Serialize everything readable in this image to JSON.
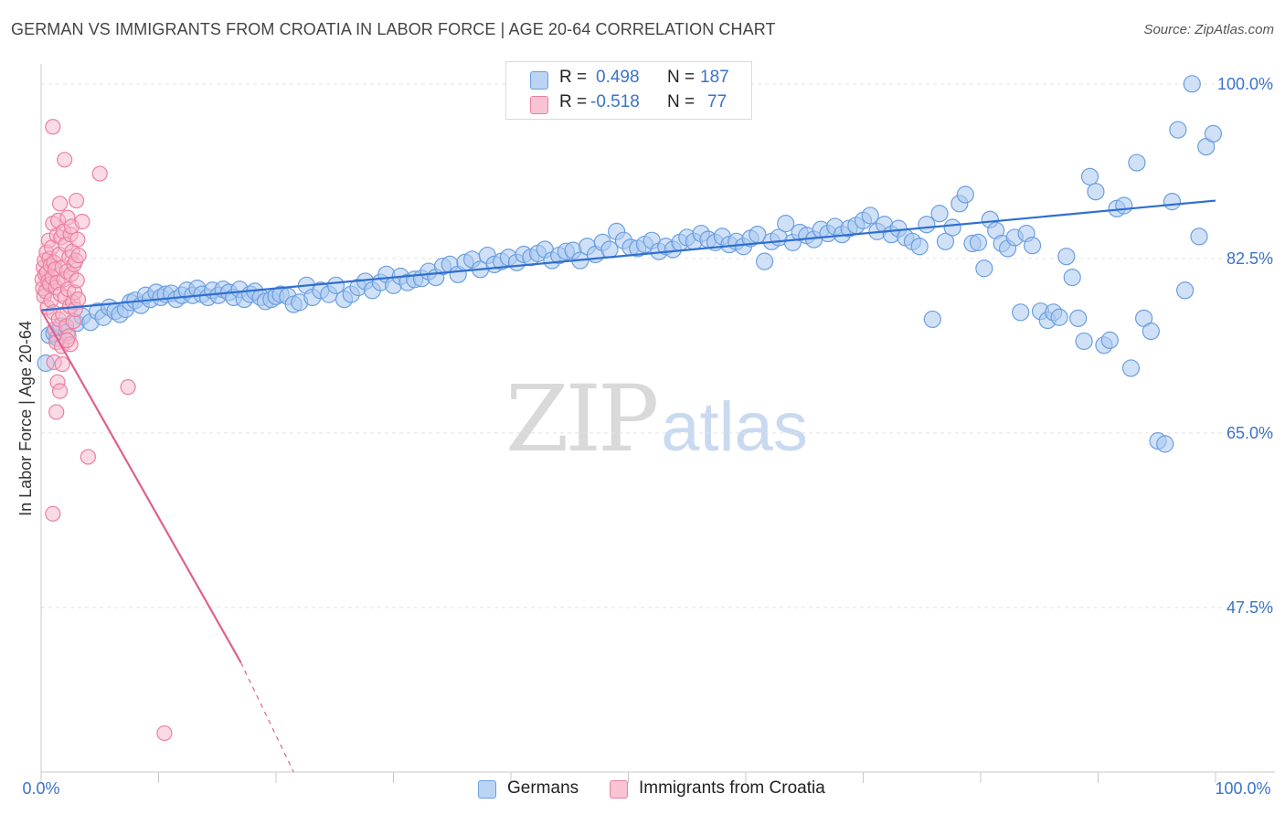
{
  "title": "GERMAN VS IMMIGRANTS FROM CROATIA IN LABOR FORCE | AGE 20-64 CORRELATION CHART",
  "source": "Source: ZipAtlas.com",
  "watermark": {
    "part1": "ZIP",
    "part2": "atlas"
  },
  "legend_stats": [
    {
      "r_label": "R =",
      "r_value": "0.498",
      "n_label": "N =",
      "n_value": "187"
    },
    {
      "r_label": "R =",
      "r_value": "-0.518",
      "n_label": "N =",
      "n_value": "77"
    }
  ],
  "colors": {
    "blue_fill": "#a9c8f0",
    "blue_stroke": "#6a9fe0",
    "blue_line": "#2f6fd0",
    "pink_fill": "#f6b5ca",
    "pink_stroke": "#ec7fa1",
    "pink_line": "#e0608e",
    "axis_text": "#3a73c9",
    "grid": "#e3e3e3"
  },
  "chart_data": {
    "type": "scatter",
    "title": "GERMAN VS IMMIGRANTS FROM CROATIA IN LABOR FORCE | AGE 20-64 CORRELATION CHART",
    "xlabel": "",
    "ylabel": "In Labor Force | Age 20-64",
    "xlim": [
      0,
      100
    ],
    "ylim": [
      31.0,
      102.0
    ],
    "x_tick_labels": [
      "0.0%",
      "100.0%"
    ],
    "y_ticks": [
      47.5,
      65.0,
      82.5,
      100.0
    ],
    "y_tick_labels": [
      "47.5%",
      "65.0%",
      "82.5%",
      "100.0%"
    ],
    "grid": true,
    "legend_position": "top-center",
    "series": [
      {
        "name": "Germans",
        "trend": {
          "x": [
            0,
            100
          ],
          "y": [
            77.3,
            88.3
          ]
        },
        "points": [
          [
            0.4,
            72.0
          ],
          [
            0.7,
            74.8
          ],
          [
            1.1,
            75.0
          ],
          [
            1.4,
            74.5
          ],
          [
            1.7,
            75.7
          ],
          [
            2.2,
            75.1
          ],
          [
            3.0,
            76.0
          ],
          [
            3.5,
            76.7
          ],
          [
            4.2,
            76.1
          ],
          [
            4.8,
            77.2
          ],
          [
            5.3,
            76.6
          ],
          [
            5.8,
            77.6
          ],
          [
            6.3,
            77.2
          ],
          [
            6.7,
            76.9
          ],
          [
            7.2,
            77.4
          ],
          [
            7.6,
            78.1
          ],
          [
            8.0,
            78.3
          ],
          [
            8.5,
            77.8
          ],
          [
            8.9,
            78.8
          ],
          [
            9.3,
            78.4
          ],
          [
            9.8,
            79.1
          ],
          [
            10.2,
            78.6
          ],
          [
            10.6,
            78.9
          ],
          [
            11.1,
            79.0
          ],
          [
            11.5,
            78.4
          ],
          [
            12.0,
            78.8
          ],
          [
            12.4,
            79.3
          ],
          [
            12.9,
            78.8
          ],
          [
            13.3,
            79.5
          ],
          [
            13.7,
            78.9
          ],
          [
            14.2,
            78.6
          ],
          [
            14.6,
            79.3
          ],
          [
            15.1,
            78.8
          ],
          [
            15.5,
            79.4
          ],
          [
            16.0,
            79.1
          ],
          [
            16.4,
            78.6
          ],
          [
            16.9,
            79.4
          ],
          [
            17.3,
            78.4
          ],
          [
            17.8,
            78.9
          ],
          [
            18.2,
            79.2
          ],
          [
            18.7,
            78.6
          ],
          [
            19.1,
            78.2
          ],
          [
            19.6,
            78.4
          ],
          [
            20.0,
            78.7
          ],
          [
            20.4,
            78.9
          ],
          [
            21.0,
            78.7
          ],
          [
            21.5,
            77.9
          ],
          [
            22.0,
            78.1
          ],
          [
            22.6,
            79.8
          ],
          [
            23.1,
            78.6
          ],
          [
            23.8,
            79.3
          ],
          [
            24.5,
            78.9
          ],
          [
            25.1,
            79.8
          ],
          [
            25.8,
            78.4
          ],
          [
            26.4,
            78.9
          ],
          [
            27.0,
            79.6
          ],
          [
            27.6,
            80.2
          ],
          [
            28.2,
            79.3
          ],
          [
            28.9,
            80.1
          ],
          [
            29.4,
            80.9
          ],
          [
            30.0,
            79.8
          ],
          [
            30.6,
            80.7
          ],
          [
            31.2,
            80.1
          ],
          [
            31.8,
            80.4
          ],
          [
            32.4,
            80.5
          ],
          [
            33.0,
            81.2
          ],
          [
            33.6,
            80.6
          ],
          [
            34.2,
            81.7
          ],
          [
            34.8,
            81.9
          ],
          [
            35.5,
            80.9
          ],
          [
            36.1,
            82.1
          ],
          [
            36.7,
            82.4
          ],
          [
            37.4,
            81.4
          ],
          [
            38.0,
            82.8
          ],
          [
            38.6,
            81.9
          ],
          [
            39.2,
            82.2
          ],
          [
            39.8,
            82.6
          ],
          [
            40.5,
            82.1
          ],
          [
            41.1,
            82.9
          ],
          [
            41.7,
            82.6
          ],
          [
            42.3,
            83.0
          ],
          [
            42.9,
            83.4
          ],
          [
            43.5,
            82.3
          ],
          [
            44.1,
            82.8
          ],
          [
            44.7,
            83.2
          ],
          [
            45.3,
            83.3
          ],
          [
            45.9,
            82.3
          ],
          [
            46.5,
            83.7
          ],
          [
            47.2,
            82.9
          ],
          [
            47.8,
            84.1
          ],
          [
            48.4,
            83.4
          ],
          [
            49.0,
            85.2
          ],
          [
            49.6,
            84.3
          ],
          [
            50.2,
            83.6
          ],
          [
            50.8,
            83.5
          ],
          [
            51.4,
            83.9
          ],
          [
            52.0,
            84.3
          ],
          [
            52.6,
            83.2
          ],
          [
            53.2,
            83.7
          ],
          [
            53.8,
            83.4
          ],
          [
            54.4,
            84.1
          ],
          [
            55.0,
            84.6
          ],
          [
            55.6,
            84.2
          ],
          [
            56.2,
            85.0
          ],
          [
            56.8,
            84.4
          ],
          [
            57.4,
            84.1
          ],
          [
            58.0,
            84.7
          ],
          [
            58.6,
            83.9
          ],
          [
            59.2,
            84.2
          ],
          [
            59.8,
            83.7
          ],
          [
            60.4,
            84.5
          ],
          [
            61.0,
            84.9
          ],
          [
            61.6,
            82.2
          ],
          [
            62.2,
            84.2
          ],
          [
            62.8,
            84.6
          ],
          [
            63.4,
            86.0
          ],
          [
            64.0,
            84.1
          ],
          [
            64.6,
            85.1
          ],
          [
            65.2,
            84.8
          ],
          [
            65.8,
            84.4
          ],
          [
            66.4,
            85.4
          ],
          [
            67.0,
            85.0
          ],
          [
            67.6,
            85.7
          ],
          [
            68.2,
            84.9
          ],
          [
            68.8,
            85.5
          ],
          [
            69.4,
            85.8
          ],
          [
            70.0,
            86.3
          ],
          [
            70.6,
            86.8
          ],
          [
            71.2,
            85.2
          ],
          [
            71.8,
            85.9
          ],
          [
            72.4,
            84.9
          ],
          [
            73.0,
            85.5
          ],
          [
            73.6,
            84.6
          ],
          [
            74.2,
            84.2
          ],
          [
            74.8,
            83.7
          ],
          [
            75.4,
            85.9
          ],
          [
            75.9,
            76.4
          ],
          [
            76.5,
            87.0
          ],
          [
            77.0,
            84.2
          ],
          [
            77.6,
            85.6
          ],
          [
            78.2,
            88.0
          ],
          [
            78.7,
            88.9
          ],
          [
            79.3,
            84.0
          ],
          [
            79.8,
            84.1
          ],
          [
            80.3,
            81.5
          ],
          [
            80.8,
            86.4
          ],
          [
            81.3,
            85.3
          ],
          [
            81.8,
            84.0
          ],
          [
            82.3,
            83.5
          ],
          [
            82.9,
            84.6
          ],
          [
            83.4,
            77.1
          ],
          [
            83.9,
            85.0
          ],
          [
            84.4,
            83.8
          ],
          [
            85.1,
            77.2
          ],
          [
            85.7,
            76.3
          ],
          [
            86.2,
            77.1
          ],
          [
            86.7,
            76.6
          ],
          [
            87.3,
            82.7
          ],
          [
            87.8,
            80.6
          ],
          [
            88.3,
            76.5
          ],
          [
            88.8,
            74.2
          ],
          [
            89.3,
            90.7
          ],
          [
            89.8,
            89.2
          ],
          [
            90.5,
            73.8
          ],
          [
            91.0,
            74.3
          ],
          [
            91.6,
            87.5
          ],
          [
            92.2,
            87.8
          ],
          [
            92.8,
            71.5
          ],
          [
            93.3,
            92.1
          ],
          [
            93.9,
            76.5
          ],
          [
            94.5,
            75.2
          ],
          [
            95.1,
            64.2
          ],
          [
            95.7,
            63.9
          ],
          [
            96.3,
            88.2
          ],
          [
            96.8,
            95.4
          ],
          [
            97.4,
            79.3
          ],
          [
            98.0,
            100.0
          ],
          [
            98.6,
            84.7
          ],
          [
            99.2,
            93.7
          ],
          [
            99.8,
            95.0
          ]
        ]
      },
      {
        "name": "Immigrants from Croatia",
        "trend": {
          "x": [
            0.0,
            17.0
          ],
          "y": [
            77.3,
            42.0
          ]
        },
        "trend_dashed": {
          "x": [
            17.0,
            21.5
          ],
          "y": [
            42.0,
            31.0
          ]
        },
        "points": [
          [
            0.1,
            80.4
          ],
          [
            0.15,
            79.5
          ],
          [
            0.2,
            81.6
          ],
          [
            0.25,
            78.7
          ],
          [
            0.3,
            82.3
          ],
          [
            0.35,
            80.9
          ],
          [
            0.4,
            79.2
          ],
          [
            0.45,
            83.1
          ],
          [
            0.5,
            81.1
          ],
          [
            0.55,
            77.6
          ],
          [
            0.6,
            80.2
          ],
          [
            0.65,
            84.3
          ],
          [
            0.7,
            82.5
          ],
          [
            0.75,
            79.9
          ],
          [
            0.8,
            81.8
          ],
          [
            0.85,
            78.3
          ],
          [
            0.9,
            83.6
          ],
          [
            0.95,
            80.6
          ],
          [
            1.0,
            86.0
          ],
          [
            1.05,
            77.1
          ],
          [
            1.1,
            82.1
          ],
          [
            1.15,
            75.4
          ],
          [
            1.2,
            81.4
          ],
          [
            1.25,
            79.6
          ],
          [
            1.3,
            74.1
          ],
          [
            1.35,
            84.8
          ],
          [
            1.4,
            80.1
          ],
          [
            1.45,
            86.3
          ],
          [
            1.5,
            76.4
          ],
          [
            1.55,
            82.9
          ],
          [
            1.6,
            88.0
          ],
          [
            1.65,
            78.9
          ],
          [
            1.7,
            84.6
          ],
          [
            1.75,
            73.7
          ],
          [
            1.8,
            81.6
          ],
          [
            1.85,
            76.9
          ],
          [
            1.9,
            85.2
          ],
          [
            1.95,
            80.4
          ],
          [
            2.0,
            92.4
          ],
          [
            2.05,
            78.6
          ],
          [
            2.1,
            83.9
          ],
          [
            2.15,
            75.7
          ],
          [
            2.2,
            81.2
          ],
          [
            2.25,
            86.6
          ],
          [
            2.3,
            79.4
          ],
          [
            2.35,
            74.7
          ],
          [
            2.4,
            82.6
          ],
          [
            2.45,
            77.7
          ],
          [
            2.5,
            84.9
          ],
          [
            2.55,
            80.9
          ],
          [
            2.6,
            85.7
          ],
          [
            2.65,
            83.2
          ],
          [
            2.7,
            78.1
          ],
          [
            2.75,
            76.2
          ],
          [
            2.8,
            81.9
          ],
          [
            2.85,
            79.1
          ],
          [
            2.9,
            77.4
          ],
          [
            2.95,
            82.3
          ],
          [
            3.0,
            88.3
          ],
          [
            3.05,
            80.3
          ],
          [
            3.1,
            84.4
          ],
          [
            3.15,
            78.4
          ],
          [
            1.0,
            95.7
          ],
          [
            1.1,
            72.1
          ],
          [
            1.3,
            67.1
          ],
          [
            1.4,
            70.1
          ],
          [
            1.6,
            69.2
          ],
          [
            2.5,
            73.9
          ],
          [
            3.2,
            82.8
          ],
          [
            4.0,
            62.6
          ],
          [
            5.0,
            91.0
          ],
          [
            7.4,
            69.6
          ],
          [
            1.0,
            56.9
          ],
          [
            10.5,
            34.9
          ],
          [
            1.8,
            71.9
          ],
          [
            3.5,
            86.2
          ],
          [
            2.2,
            74.3
          ]
        ]
      }
    ]
  },
  "bottom_legend": [
    {
      "label": "Germans"
    },
    {
      "label": "Immigrants from Croatia"
    }
  ]
}
